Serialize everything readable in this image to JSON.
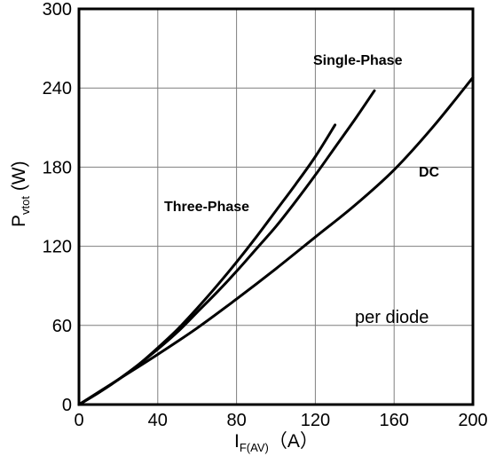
{
  "chart_data": {
    "type": "line",
    "xlabel": {
      "main": "I",
      "sub": "F(AV)",
      "unit": "（A）"
    },
    "ylabel": {
      "main": "P",
      "sub": "vtot",
      "unit": " (W)"
    },
    "xlim": [
      0,
      200
    ],
    "ylim": [
      0,
      300
    ],
    "x_ticks": [
      0,
      40,
      80,
      120,
      160,
      200
    ],
    "y_ticks": [
      0,
      60,
      120,
      180,
      240,
      300
    ],
    "grid": true,
    "series": [
      {
        "name": "Three-Phase",
        "x": [
          0,
          10,
          20,
          30,
          40,
          50,
          60,
          70,
          80,
          90,
          100,
          110,
          120,
          130
        ],
        "y": [
          0,
          9,
          19,
          30,
          43,
          57,
          73,
          90,
          108,
          127,
          147,
          167,
          188,
          212
        ]
      },
      {
        "name": "Single-Phase",
        "x": [
          0,
          10,
          20,
          30,
          40,
          50,
          60,
          70,
          80,
          90,
          100,
          110,
          120,
          130,
          140,
          150
        ],
        "y": [
          0,
          9,
          19,
          30,
          42,
          55,
          70,
          85,
          101,
          118,
          135,
          154,
          174,
          195,
          216,
          238
        ]
      },
      {
        "name": "DC",
        "x": [
          0,
          20,
          40,
          60,
          80,
          100,
          120,
          140,
          160,
          180,
          200
        ],
        "y": [
          0,
          19,
          38,
          58,
          80,
          103,
          127,
          151,
          178,
          211,
          248
        ]
      }
    ],
    "annotations": [
      "Three-Phase",
      "Single-Phase",
      "DC",
      "per diode"
    ]
  }
}
